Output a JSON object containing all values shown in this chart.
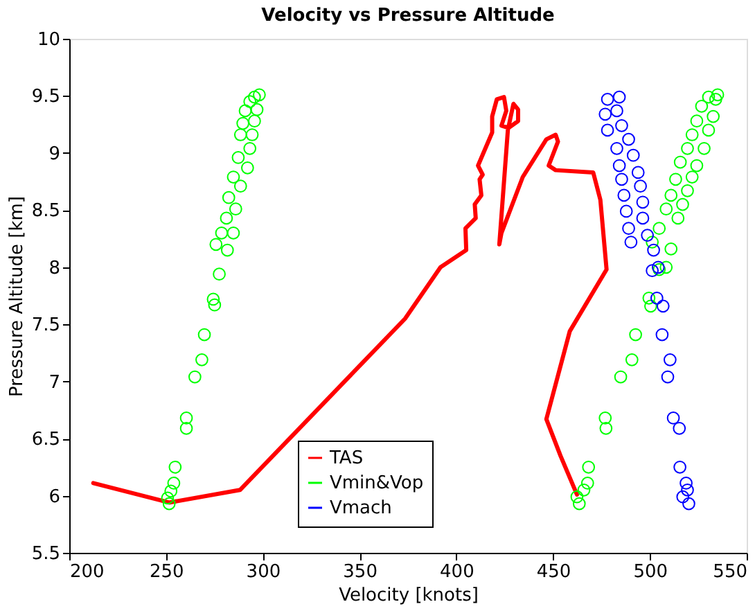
{
  "chart_data": {
    "type": "scatter",
    "title": "Velocity vs Pressure Altitude",
    "xlabel": "Velocity [knots]",
    "ylabel": "Pressure Altitude [km]",
    "xlim": [
      200,
      550
    ],
    "xticks": [
      200,
      250,
      300,
      350,
      400,
      450,
      500,
      550
    ],
    "ylim": [
      5.5,
      10
    ],
    "yticks": [
      5.5,
      6,
      6.5,
      7,
      7.5,
      8,
      8.5,
      9,
      9.5,
      10
    ],
    "grid": false,
    "legend": "bottom",
    "marker": "circle",
    "series": [
      {
        "name": "TAS",
        "type": "line",
        "color": "#ff0000",
        "marker": "none",
        "line_style": "solid",
        "x": [
          212.4,
          251.6,
          288.2,
          373.5,
          391.8,
          405.1,
          404.7,
          410.0,
          409.5,
          412.9,
          412.0,
          413.6,
          411.2,
          418.5,
          418.5,
          420.9,
          424.6,
          425.8,
          423.3,
          427.0,
          431.9,
          431.9,
          429.5,
          426.6,
          422.2,
          423.3,
          434.3,
          446.5,
          451.3,
          452.5,
          447.7,
          451.3,
          470.7,
          474.4,
          477.6,
          458.6,
          446.5,
          453.8,
          462.3
        ],
        "values": [
          6.11,
          5.94,
          6.05,
          7.55,
          8.0,
          8.15,
          8.34,
          8.43,
          8.55,
          8.63,
          8.77,
          8.81,
          8.89,
          9.18,
          9.32,
          9.47,
          9.49,
          9.37,
          9.24,
          9.22,
          9.28,
          9.38,
          9.43,
          9.2,
          8.2,
          8.3,
          8.79,
          9.12,
          9.16,
          9.1,
          8.89,
          8.85,
          8.83,
          8.59,
          7.98,
          7.44,
          6.67,
          6.35,
          6.01
        ]
      },
      {
        "name": "Vmin&Vop",
        "type": "scatter",
        "color": "#00ff00",
        "x": [
          251.6,
          250.8,
          252.5,
          254.0,
          254.7,
          260.5,
          260.5,
          264.9,
          268.5,
          269.8,
          275.1,
          274.4,
          277.5,
          281.7,
          275.8,
          278.7,
          284.8,
          281.2,
          286.0,
          282.4,
          288.5,
          284.8,
          292.1,
          287.3,
          293.3,
          288.5,
          294.5,
          289.7,
          295.7,
          290.9,
          297.0,
          293.3,
          298.2,
          295.7,
          463.5,
          462.3,
          465.9,
          467.8,
          468.3,
          477.3,
          476.9,
          484.9,
          490.7,
          492.6,
          499.5,
          500.4,
          504.8,
          508.4,
          501.2,
          510.9,
          504.8,
          514.5,
          508.4,
          516.9,
          510.9,
          519.4,
          513.3,
          521.8,
          515.7,
          524.2,
          519.4,
          528.0,
          521.8,
          530.3,
          524.2,
          532.7,
          526.7,
          534.0,
          530.3,
          535.0
        ],
        "values": [
          5.93,
          5.98,
          6.04,
          6.11,
          6.25,
          6.59,
          6.68,
          7.04,
          7.19,
          7.41,
          7.67,
          7.72,
          7.94,
          8.15,
          8.2,
          8.3,
          8.3,
          8.43,
          8.51,
          8.61,
          8.71,
          8.79,
          8.87,
          8.96,
          9.04,
          9.16,
          9.16,
          9.26,
          9.28,
          9.37,
          9.38,
          9.45,
          9.51,
          9.49,
          5.93,
          5.99,
          6.05,
          6.11,
          6.25,
          6.59,
          6.68,
          7.04,
          7.19,
          7.41,
          7.73,
          7.66,
          7.98,
          8.0,
          8.22,
          8.16,
          8.34,
          8.43,
          8.51,
          8.55,
          8.63,
          8.67,
          8.77,
          8.79,
          8.92,
          8.89,
          9.04,
          9.04,
          9.16,
          9.2,
          9.28,
          9.32,
          9.41,
          9.47,
          9.49,
          9.51
        ]
      },
      {
        "name": "Vmach",
        "type": "scatter",
        "color": "#0000ff",
        "x": [
          520.1,
          517.0,
          519.4,
          518.7,
          515.5,
          515.2,
          512.1,
          509.2,
          510.4,
          506.3,
          506.8,
          503.6,
          504.3,
          501.2,
          501.9,
          498.7,
          490.2,
          496.3,
          489.0,
          496.3,
          487.8,
          495.1,
          486.6,
          493.9,
          485.4,
          491.4,
          484.2,
          489.0,
          482.9,
          485.4,
          478.1,
          482.9,
          476.9,
          484.2,
          478.1
        ],
        "values": [
          5.93,
          5.99,
          6.05,
          6.11,
          6.25,
          6.59,
          6.68,
          7.04,
          7.19,
          7.41,
          7.66,
          7.73,
          8.0,
          7.97,
          8.15,
          8.28,
          8.22,
          8.43,
          8.34,
          8.57,
          8.49,
          8.71,
          8.63,
          8.83,
          8.77,
          8.98,
          8.89,
          9.12,
          9.04,
          9.24,
          9.2,
          9.37,
          9.34,
          9.49,
          9.47
        ]
      }
    ]
  }
}
